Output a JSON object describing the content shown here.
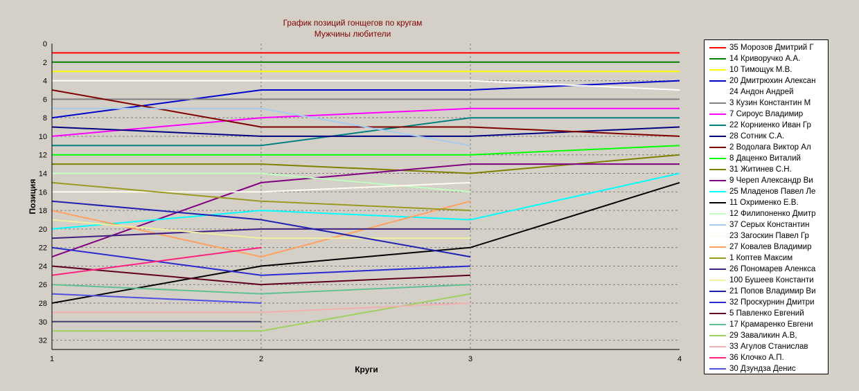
{
  "chart_data": {
    "type": "line",
    "title": "График позиций гонщегов по кругам",
    "subtitle": "Мужчины любители",
    "xlabel": "Круги",
    "ylabel": "Позиция",
    "x": [
      1,
      2,
      3,
      4
    ],
    "xlim": [
      1,
      4
    ],
    "ylim": [
      0,
      33
    ],
    "y_inverted": true,
    "xticks": [
      "1",
      "2",
      "3",
      "4"
    ],
    "yticks": [
      "0",
      "2",
      "4",
      "6",
      "8",
      "10",
      "12",
      "14",
      "16",
      "18",
      "20",
      "22",
      "24",
      "26",
      "28",
      "30",
      "32"
    ],
    "grid": true,
    "legend_position": "right",
    "background": "#d4d0c8",
    "series": [
      {
        "name": "35 Морозов Дмитрий Г",
        "color": "#ff0000",
        "values": [
          1,
          1,
          1,
          1
        ]
      },
      {
        "name": "14 Криворучко А.А.",
        "color": "#008000",
        "values": [
          2,
          2,
          2,
          2
        ]
      },
      {
        "name": "10 Тимощук М.В.",
        "color": "#ffff00",
        "values": [
          3,
          3,
          3,
          3
        ]
      },
      {
        "name": "20 Дмитрюхин Алексан",
        "color": "#0000cc",
        "values": [
          8,
          5,
          5,
          4
        ]
      },
      {
        "name": "24 Андон Андрей",
        "color": "#ffffff",
        "values": [
          4,
          4,
          4,
          5
        ]
      },
      {
        "name": "3 Кузин Константин М",
        "color": "#808080",
        "values": [
          6,
          6,
          6,
          6
        ]
      },
      {
        "name": "7 Сироус Владимир",
        "color": "#ff00ff",
        "values": [
          10,
          8,
          7,
          7
        ]
      },
      {
        "name": "22 Корниенко Иван Гр",
        "color": "#008080",
        "values": [
          11,
          11,
          8,
          8
        ]
      },
      {
        "name": "28 Сотник С.А.",
        "color": "#000080",
        "values": [
          9,
          10,
          10,
          9
        ]
      },
      {
        "name": "2 Водолага Виктор Ал",
        "color": "#800000",
        "values": [
          5,
          9,
          9,
          10
        ]
      },
      {
        "name": "8 Даценко Виталий",
        "color": "#00ff00",
        "values": [
          12,
          12,
          12,
          11
        ]
      },
      {
        "name": "31 Житинев С.Н.",
        "color": "#808000",
        "values": [
          13,
          13,
          14,
          12
        ]
      },
      {
        "name": "9 Череп Александр Ви",
        "color": "#800080",
        "values": [
          23,
          15,
          13,
          13
        ]
      },
      {
        "name": "25 Младенов Павел Ле",
        "color": "#00ffff",
        "values": [
          20,
          18,
          19,
          14
        ]
      },
      {
        "name": "11 Охрименко Е.В.",
        "color": "#000000",
        "values": [
          28,
          24,
          22,
          15
        ]
      },
      {
        "name": "12 Филипоненко Дмитр",
        "color": "#c0ffc0",
        "values": [
          14,
          14,
          16,
          null
        ]
      },
      {
        "name": "37 Серых Константин",
        "color": "#a6caf0",
        "values": [
          7,
          7,
          11,
          null
        ]
      },
      {
        "name": "23 Загоскин Павел Гр",
        "color": "#fffbf0",
        "values": [
          16,
          16,
          15,
          null
        ]
      },
      {
        "name": "27 Ковалев Владимир",
        "color": "#ffa060",
        "values": [
          18,
          23,
          17,
          null
        ]
      },
      {
        "name": "1 Коптев Максим",
        "color": "#9a9a20",
        "values": [
          15,
          17,
          18,
          null
        ]
      },
      {
        "name": "26 Пономарев Аленкса",
        "color": "#402080",
        "values": [
          21,
          20,
          20,
          null
        ]
      },
      {
        "name": "100 Бушеев Константи",
        "color": "#f0f0a0",
        "values": [
          19,
          21,
          21,
          null
        ]
      },
      {
        "name": "21 Попов Владимир Ви",
        "color": "#2020b0",
        "values": [
          17,
          19,
          23,
          null
        ]
      },
      {
        "name": "32 Проскурнин Дмитри",
        "color": "#2a2ad0",
        "values": [
          22,
          25,
          24,
          null
        ]
      },
      {
        "name": "5 Павленко Евгений",
        "color": "#600020",
        "values": [
          24,
          26,
          25,
          null
        ]
      },
      {
        "name": "17 Крамаренко Евгени",
        "color": "#60c090",
        "values": [
          26,
          27,
          26,
          null
        ]
      },
      {
        "name": "29 Заваликин А.В,",
        "color": "#a0d060",
        "values": [
          31,
          31,
          27,
          null
        ]
      },
      {
        "name": "33 Агулов Станислав",
        "color": "#f0b0b0",
        "values": [
          29,
          29,
          28,
          null
        ]
      },
      {
        "name": "36 Клочко А.П.",
        "color": "#ff2080",
        "values": [
          25,
          22,
          null,
          null
        ]
      },
      {
        "name": "30 Дзундза Денис",
        "color": "#5050e0",
        "values": [
          27,
          28,
          null,
          null
        ]
      },
      {
        "name": "",
        "color": "#404070",
        "values": [
          30,
          30,
          null,
          null
        ]
      }
    ]
  }
}
